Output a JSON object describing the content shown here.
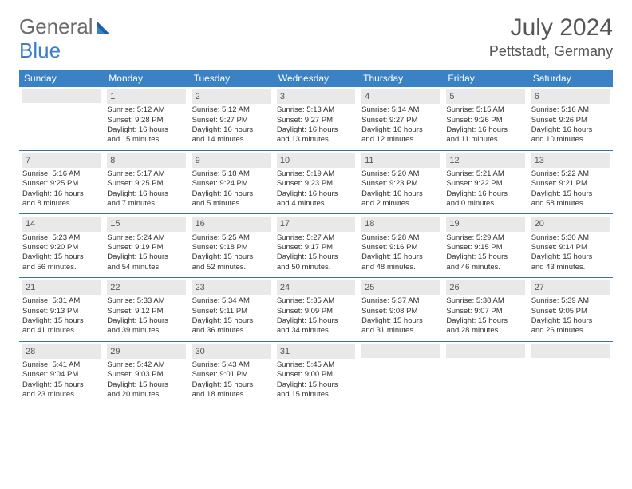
{
  "logo": {
    "text1": "General",
    "text2": "Blue"
  },
  "title": "July 2024",
  "location": "Pettstadt, Germany",
  "colors": {
    "header_bg": "#3b82c4",
    "header_text": "#ffffff",
    "daynum_bg": "#e9e9e9",
    "row_border": "#3b6fa0",
    "text": "#333333",
    "logo_gray": "#6b6b6b",
    "logo_blue": "#3b7fc4"
  },
  "dow": [
    "Sunday",
    "Monday",
    "Tuesday",
    "Wednesday",
    "Thursday",
    "Friday",
    "Saturday"
  ],
  "weeks": [
    [
      {
        "num": "",
        "l1": "",
        "l2": "",
        "l3": "",
        "l4": ""
      },
      {
        "num": "1",
        "l1": "Sunrise: 5:12 AM",
        "l2": "Sunset: 9:28 PM",
        "l3": "Daylight: 16 hours",
        "l4": "and 15 minutes."
      },
      {
        "num": "2",
        "l1": "Sunrise: 5:12 AM",
        "l2": "Sunset: 9:27 PM",
        "l3": "Daylight: 16 hours",
        "l4": "and 14 minutes."
      },
      {
        "num": "3",
        "l1": "Sunrise: 5:13 AM",
        "l2": "Sunset: 9:27 PM",
        "l3": "Daylight: 16 hours",
        "l4": "and 13 minutes."
      },
      {
        "num": "4",
        "l1": "Sunrise: 5:14 AM",
        "l2": "Sunset: 9:27 PM",
        "l3": "Daylight: 16 hours",
        "l4": "and 12 minutes."
      },
      {
        "num": "5",
        "l1": "Sunrise: 5:15 AM",
        "l2": "Sunset: 9:26 PM",
        "l3": "Daylight: 16 hours",
        "l4": "and 11 minutes."
      },
      {
        "num": "6",
        "l1": "Sunrise: 5:16 AM",
        "l2": "Sunset: 9:26 PM",
        "l3": "Daylight: 16 hours",
        "l4": "and 10 minutes."
      }
    ],
    [
      {
        "num": "7",
        "l1": "Sunrise: 5:16 AM",
        "l2": "Sunset: 9:25 PM",
        "l3": "Daylight: 16 hours",
        "l4": "and 8 minutes."
      },
      {
        "num": "8",
        "l1": "Sunrise: 5:17 AM",
        "l2": "Sunset: 9:25 PM",
        "l3": "Daylight: 16 hours",
        "l4": "and 7 minutes."
      },
      {
        "num": "9",
        "l1": "Sunrise: 5:18 AM",
        "l2": "Sunset: 9:24 PM",
        "l3": "Daylight: 16 hours",
        "l4": "and 5 minutes."
      },
      {
        "num": "10",
        "l1": "Sunrise: 5:19 AM",
        "l2": "Sunset: 9:23 PM",
        "l3": "Daylight: 16 hours",
        "l4": "and 4 minutes."
      },
      {
        "num": "11",
        "l1": "Sunrise: 5:20 AM",
        "l2": "Sunset: 9:23 PM",
        "l3": "Daylight: 16 hours",
        "l4": "and 2 minutes."
      },
      {
        "num": "12",
        "l1": "Sunrise: 5:21 AM",
        "l2": "Sunset: 9:22 PM",
        "l3": "Daylight: 16 hours",
        "l4": "and 0 minutes."
      },
      {
        "num": "13",
        "l1": "Sunrise: 5:22 AM",
        "l2": "Sunset: 9:21 PM",
        "l3": "Daylight: 15 hours",
        "l4": "and 58 minutes."
      }
    ],
    [
      {
        "num": "14",
        "l1": "Sunrise: 5:23 AM",
        "l2": "Sunset: 9:20 PM",
        "l3": "Daylight: 15 hours",
        "l4": "and 56 minutes."
      },
      {
        "num": "15",
        "l1": "Sunrise: 5:24 AM",
        "l2": "Sunset: 9:19 PM",
        "l3": "Daylight: 15 hours",
        "l4": "and 54 minutes."
      },
      {
        "num": "16",
        "l1": "Sunrise: 5:25 AM",
        "l2": "Sunset: 9:18 PM",
        "l3": "Daylight: 15 hours",
        "l4": "and 52 minutes."
      },
      {
        "num": "17",
        "l1": "Sunrise: 5:27 AM",
        "l2": "Sunset: 9:17 PM",
        "l3": "Daylight: 15 hours",
        "l4": "and 50 minutes."
      },
      {
        "num": "18",
        "l1": "Sunrise: 5:28 AM",
        "l2": "Sunset: 9:16 PM",
        "l3": "Daylight: 15 hours",
        "l4": "and 48 minutes."
      },
      {
        "num": "19",
        "l1": "Sunrise: 5:29 AM",
        "l2": "Sunset: 9:15 PM",
        "l3": "Daylight: 15 hours",
        "l4": "and 46 minutes."
      },
      {
        "num": "20",
        "l1": "Sunrise: 5:30 AM",
        "l2": "Sunset: 9:14 PM",
        "l3": "Daylight: 15 hours",
        "l4": "and 43 minutes."
      }
    ],
    [
      {
        "num": "21",
        "l1": "Sunrise: 5:31 AM",
        "l2": "Sunset: 9:13 PM",
        "l3": "Daylight: 15 hours",
        "l4": "and 41 minutes."
      },
      {
        "num": "22",
        "l1": "Sunrise: 5:33 AM",
        "l2": "Sunset: 9:12 PM",
        "l3": "Daylight: 15 hours",
        "l4": "and 39 minutes."
      },
      {
        "num": "23",
        "l1": "Sunrise: 5:34 AM",
        "l2": "Sunset: 9:11 PM",
        "l3": "Daylight: 15 hours",
        "l4": "and 36 minutes."
      },
      {
        "num": "24",
        "l1": "Sunrise: 5:35 AM",
        "l2": "Sunset: 9:09 PM",
        "l3": "Daylight: 15 hours",
        "l4": "and 34 minutes."
      },
      {
        "num": "25",
        "l1": "Sunrise: 5:37 AM",
        "l2": "Sunset: 9:08 PM",
        "l3": "Daylight: 15 hours",
        "l4": "and 31 minutes."
      },
      {
        "num": "26",
        "l1": "Sunrise: 5:38 AM",
        "l2": "Sunset: 9:07 PM",
        "l3": "Daylight: 15 hours",
        "l4": "and 28 minutes."
      },
      {
        "num": "27",
        "l1": "Sunrise: 5:39 AM",
        "l2": "Sunset: 9:05 PM",
        "l3": "Daylight: 15 hours",
        "l4": "and 26 minutes."
      }
    ],
    [
      {
        "num": "28",
        "l1": "Sunrise: 5:41 AM",
        "l2": "Sunset: 9:04 PM",
        "l3": "Daylight: 15 hours",
        "l4": "and 23 minutes."
      },
      {
        "num": "29",
        "l1": "Sunrise: 5:42 AM",
        "l2": "Sunset: 9:03 PM",
        "l3": "Daylight: 15 hours",
        "l4": "and 20 minutes."
      },
      {
        "num": "30",
        "l1": "Sunrise: 5:43 AM",
        "l2": "Sunset: 9:01 PM",
        "l3": "Daylight: 15 hours",
        "l4": "and 18 minutes."
      },
      {
        "num": "31",
        "l1": "Sunrise: 5:45 AM",
        "l2": "Sunset: 9:00 PM",
        "l3": "Daylight: 15 hours",
        "l4": "and 15 minutes."
      },
      {
        "num": "",
        "l1": "",
        "l2": "",
        "l3": "",
        "l4": ""
      },
      {
        "num": "",
        "l1": "",
        "l2": "",
        "l3": "",
        "l4": ""
      },
      {
        "num": "",
        "l1": "",
        "l2": "",
        "l3": "",
        "l4": ""
      }
    ]
  ]
}
